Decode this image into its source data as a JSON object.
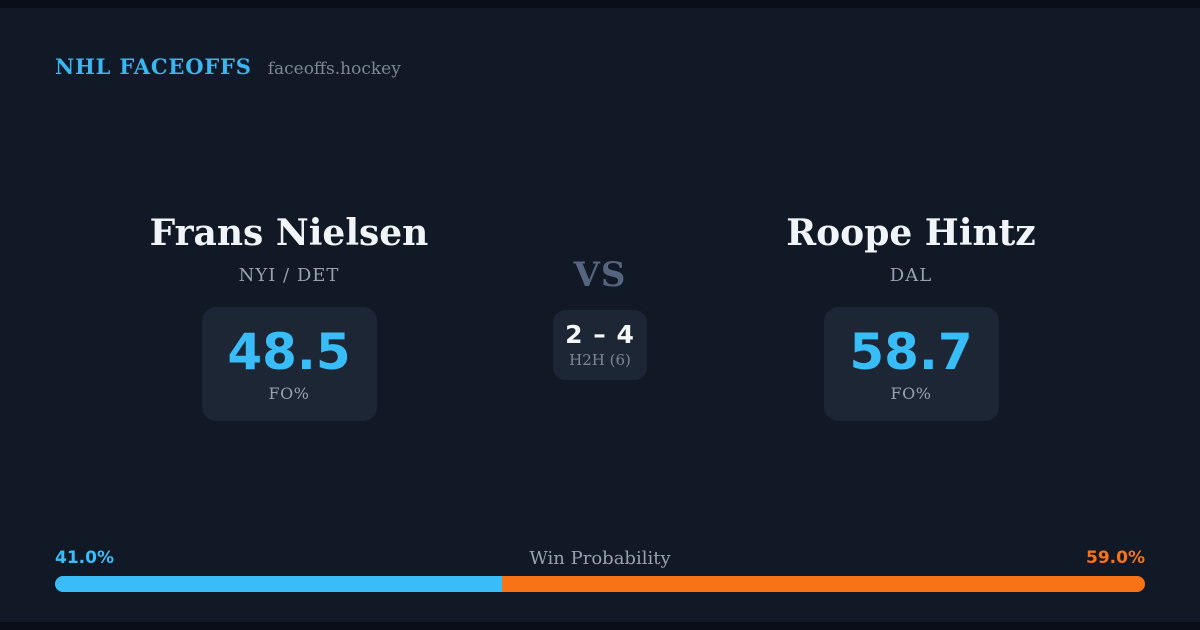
{
  "page": {
    "background": "#111927",
    "edge_strip_color": "#0a0e17",
    "card_background": "#1c2634"
  },
  "header": {
    "brand": "NHL FACEOFFS",
    "site": "faceoffs.hockey"
  },
  "matchup": {
    "player_left": {
      "name": "Frans Nielsen",
      "team": "NYI / DET",
      "stat_value": "48.5",
      "stat_label": "FO%"
    },
    "versus": {
      "label": "VS",
      "h2h_score": "2 – 4",
      "h2h_label": "H2H (6)"
    },
    "player_right": {
      "name": "Roope Hintz",
      "team": "DAL",
      "stat_value": "58.7",
      "stat_label": "FO%"
    }
  },
  "win_probability": {
    "label": "Win Probability",
    "left_pct_label": "41.0%",
    "right_pct_label": "59.0%",
    "left_value": 41.0,
    "right_value": 59.0
  },
  "colors": {
    "accent_blue": "#38bdf8",
    "accent_orange": "#f97316",
    "name_text": "#f1f4f8",
    "muted_text": "#97a1b0",
    "faint_text": "#7d8794",
    "vs_text": "#55657e"
  },
  "chart_data": {
    "type": "bar",
    "title": "Win Probability",
    "orientation": "horizontal_stacked",
    "categories": [
      "Win Probability"
    ],
    "series": [
      {
        "name": "Frans Nielsen",
        "values": [
          41.0
        ],
        "color": "#38bdf8"
      },
      {
        "name": "Roope Hintz",
        "values": [
          59.0
        ],
        "color": "#f97316"
      }
    ],
    "xlim": [
      0,
      100
    ],
    "annotations": [
      "41.0%",
      "59.0%"
    ],
    "legend_position": "none",
    "grid": false
  }
}
